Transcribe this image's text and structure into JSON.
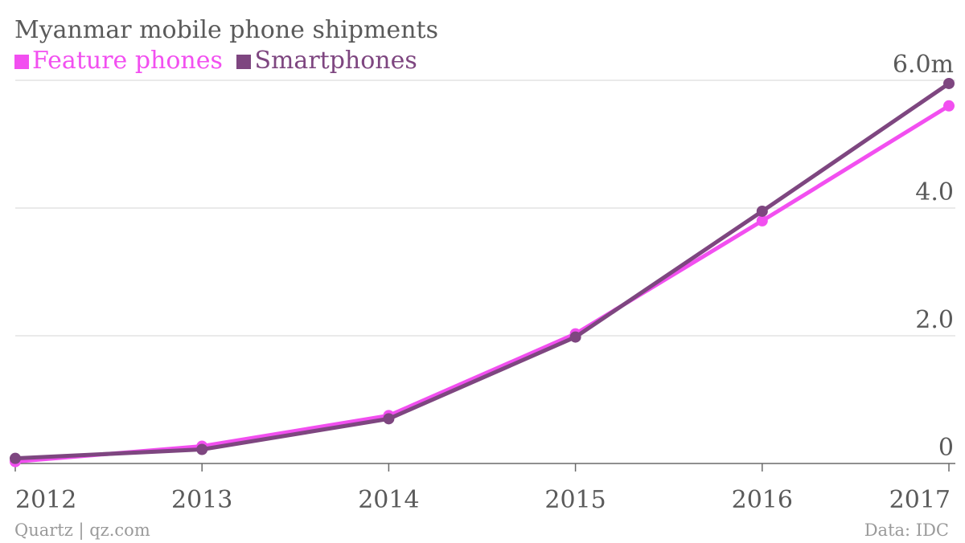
{
  "chart_data": {
    "type": "line",
    "title": "Myanmar mobile phone shipments",
    "x": [
      "2012",
      "2013",
      "2014",
      "2015",
      "2016",
      "2017"
    ],
    "series": [
      {
        "name": "Feature phones",
        "color": "#f24ff0",
        "values": [
          0.03,
          0.27,
          0.75,
          2.03,
          3.8,
          5.6
        ]
      },
      {
        "name": "Smartphones",
        "color": "#7e4680",
        "values": [
          0.08,
          0.22,
          0.7,
          1.98,
          3.95,
          5.95
        ]
      }
    ],
    "ylim": [
      0,
      6
    ],
    "yticks": [
      {
        "value": 0,
        "label": "0"
      },
      {
        "value": 2,
        "label": "2.0"
      },
      {
        "value": 4,
        "label": "4.0"
      },
      {
        "value": 6,
        "label": "6.0m"
      }
    ],
    "grid": true,
    "legend": "top-left"
  },
  "footer": {
    "source_left": "Quartz | qz.com",
    "source_right": "Data: IDC"
  }
}
